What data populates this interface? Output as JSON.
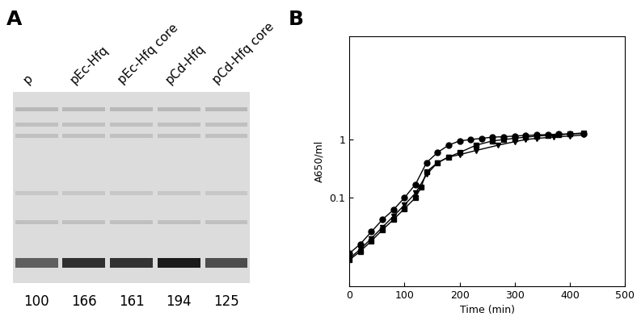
{
  "chart_data": [
    {
      "type": "gel",
      "title": "A",
      "categories": [
        "p",
        "pEc-Hfq",
        "pEc-Hfq core",
        "pCd-Hfq",
        "pCd-Hfq core"
      ],
      "values": [
        100,
        166,
        161,
        194,
        125
      ],
      "data_labels": true
    },
    {
      "type": "line",
      "title": "B",
      "x_label": "Time (min)",
      "y_label": "A650/ml",
      "log": "y",
      "xlim": [
        0,
        500
      ],
      "xticks": [
        0,
        100,
        200,
        300,
        400,
        500
      ],
      "ylim": [
        0.003,
        60
      ],
      "yticks": [
        {
          "value": 0.1,
          "label": "0.1"
        },
        {
          "value": 1,
          "label": "1"
        }
      ],
      "series": [
        {
          "color": "#000000",
          "marker": "circle",
          "x": [
            0,
            20,
            40,
            60,
            80,
            100,
            120,
            140,
            160,
            180,
            200,
            220,
            240,
            260,
            280,
            300,
            320,
            340,
            360,
            380,
            400,
            425
          ],
          "values": [
            0.011,
            0.016,
            0.026,
            0.042,
            0.062,
            0.1,
            0.17,
            0.4,
            0.6,
            0.8,
            0.95,
            1.0,
            1.05,
            1.1,
            1.12,
            1.15,
            1.18,
            1.2,
            1.22,
            1.24,
            1.25,
            1.27
          ]
        },
        {
          "color": "#000000",
          "marker": "square",
          "x": [
            0,
            20,
            40,
            60,
            80,
            100,
            120,
            130,
            140,
            160,
            180,
            200,
            230,
            260,
            280,
            300,
            320,
            340,
            360,
            380,
            400,
            425
          ],
          "values": [
            0.0085,
            0.012,
            0.018,
            0.028,
            0.042,
            0.065,
            0.1,
            0.15,
            0.28,
            0.4,
            0.5,
            0.6,
            0.8,
            0.95,
            1.0,
            1.05,
            1.1,
            1.15,
            1.18,
            1.2,
            1.25,
            1.3
          ]
        },
        {
          "color": "#000000",
          "marker": "triangle",
          "x": [
            0,
            20,
            40,
            60,
            80,
            100,
            120,
            140,
            160,
            180,
            200,
            230,
            270,
            300,
            320,
            340,
            370,
            400,
            425
          ],
          "values": [
            0.009,
            0.013,
            0.02,
            0.031,
            0.048,
            0.075,
            0.12,
            0.25,
            0.4,
            0.5,
            0.55,
            0.65,
            0.8,
            0.92,
            1.0,
            1.05,
            1.1,
            1.15,
            1.2
          ]
        }
      ]
    }
  ]
}
